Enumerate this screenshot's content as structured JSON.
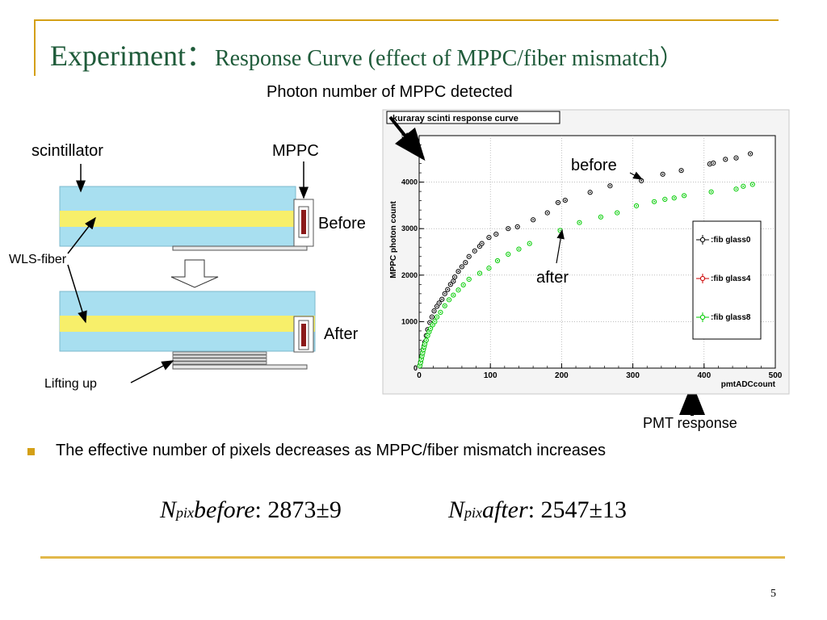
{
  "slide": {
    "title_main": "Experiment：",
    "title_sub": "Response Curve (effect of  MPPC/fiber mismatch）",
    "photon_label": "Photon number of MPPC detected",
    "scintillator_label": "scintillator",
    "mppc_label": "MPPC",
    "before_label": "Before",
    "after_label": "After",
    "wls_label": "WLS-fiber",
    "lifting_label": "Lifting up",
    "plot_before_label": "before",
    "plot_after_label": "after",
    "pmt_label": "PMT response",
    "bullet_text": "The effective number of pixels decreases  as MPPC/fiber mismatch increases",
    "formula": {
      "n": "N",
      "pix": "pix",
      "before_word": "before",
      "before_value": ":  2873±9",
      "after_word": "after",
      "after_value": ":  2547±13"
    },
    "page_number": "5"
  },
  "colors": {
    "title": "#1f5b3a",
    "accent": "#d4a017",
    "scint": "#a8dff0",
    "fiber": "#f7ef6a",
    "series_glass0": "#000000",
    "series_glass4": "#cc0000",
    "series_glass8": "#00cc00"
  },
  "chart_data": {
    "type": "scatter",
    "title": "kuraray scinti response curve",
    "xlabel": "pmtADCcount",
    "ylabel": "MPPC photon count",
    "xlim": [
      0,
      500
    ],
    "ylim": [
      0,
      5000
    ],
    "xticks": [
      0,
      100,
      200,
      300,
      400,
      500
    ],
    "yticks": [
      0,
      1000,
      2000,
      3000,
      4000,
      5000
    ],
    "grid": true,
    "legend_position": "right",
    "series": [
      {
        "name": ":fib glass0",
        "color": "#000000",
        "x": [
          1,
          2,
          3,
          4,
          5,
          6,
          7,
          8,
          10,
          12,
          15,
          18,
          21,
          25,
          28,
          32,
          36,
          40,
          44,
          48,
          50,
          55,
          60,
          65,
          70,
          78,
          85,
          88,
          98,
          108,
          125,
          138,
          160,
          180,
          195,
          205,
          240,
          268,
          312,
          342,
          368,
          408,
          413,
          430,
          445,
          465
        ],
        "y": [
          60,
          130,
          200,
          270,
          340,
          410,
          480,
          560,
          700,
          830,
          980,
          1100,
          1230,
          1330,
          1400,
          1480,
          1600,
          1690,
          1800,
          1870,
          1960,
          2080,
          2180,
          2270,
          2400,
          2520,
          2620,
          2680,
          2810,
          2880,
          3000,
          3040,
          3190,
          3340,
          3560,
          3610,
          3780,
          3920,
          4030,
          4170,
          4250,
          4390,
          4410,
          4490,
          4520,
          4610
        ]
      },
      {
        "name": ":fib glass4",
        "color": "#cc0000",
        "x": [],
        "y": []
      },
      {
        "name": ":fib glass8",
        "color": "#00cc00",
        "x": [
          1,
          2,
          3,
          4,
          5,
          6,
          7,
          8,
          10,
          12,
          14,
          16,
          19,
          22,
          25,
          30,
          36,
          42,
          48,
          55,
          62,
          70,
          85,
          98,
          110,
          125,
          140,
          155,
          198,
          225,
          255,
          278,
          305,
          330,
          345,
          358,
          372,
          410,
          445,
          455,
          468
        ],
        "y": [
          50,
          120,
          190,
          260,
          330,
          400,
          460,
          520,
          600,
          700,
          780,
          850,
          930,
          1000,
          1100,
          1200,
          1340,
          1470,
          1570,
          1680,
          1790,
          1910,
          2040,
          2150,
          2310,
          2450,
          2560,
          2680,
          2960,
          3130,
          3250,
          3340,
          3490,
          3580,
          3630,
          3660,
          3710,
          3790,
          3850,
          3910,
          3950
        ]
      }
    ]
  }
}
